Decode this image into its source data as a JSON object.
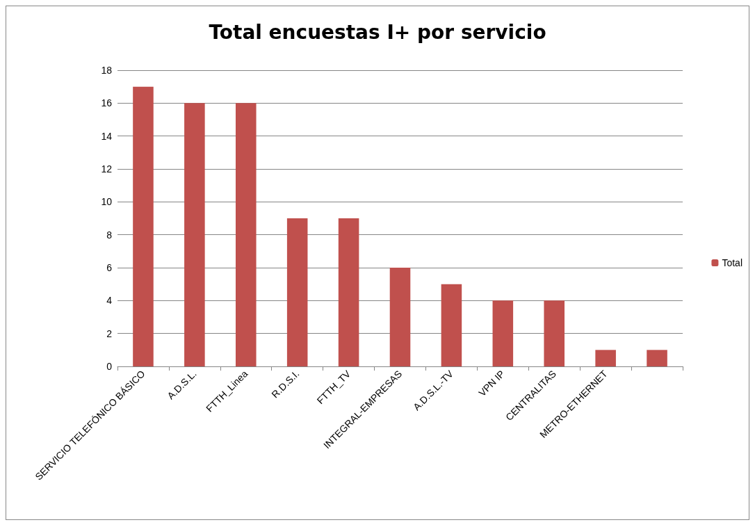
{
  "chart_data": {
    "type": "bar",
    "title": "Total encuestas I+ por servicio",
    "categories": [
      "SERVICIO TELEFÓNICO BÁSICO",
      "A.D.S.L.",
      "FTTH_Linea",
      "R.D.S.I.",
      "FTTH_TV",
      "INTEGRAL-EMPRESAS",
      "A.D.S.L.-TV",
      "VPN IP",
      "CENTRALITAS",
      "METRO-ETHERNET",
      null
    ],
    "series": [
      {
        "name": "Total",
        "color": "#c0504d",
        "values": [
          17,
          16,
          16,
          9,
          9,
          6,
          5,
          4,
          4,
          1,
          1
        ]
      }
    ],
    "ylim": [
      0,
      18
    ],
    "yticks": [
      0,
      2,
      4,
      6,
      8,
      10,
      12,
      14,
      16,
      18
    ],
    "grid": "y",
    "legend": "right"
  }
}
